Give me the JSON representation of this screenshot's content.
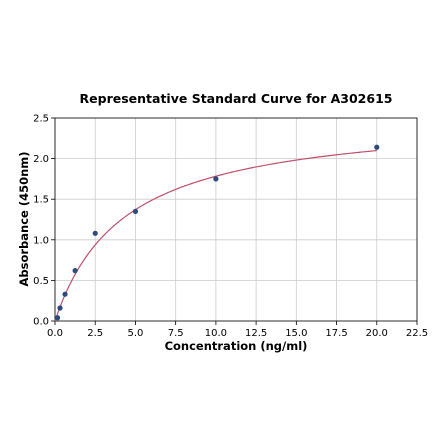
{
  "chart_data": {
    "type": "scatter",
    "title": "Representative Standard Curve for A302615",
    "xlabel": "Concentration (ng/ml)",
    "ylabel": "Absorbance (450nm)",
    "xlim": [
      0,
      22.5
    ],
    "ylim": [
      0,
      2.5
    ],
    "xticks": [
      0.0,
      2.5,
      5.0,
      7.5,
      10.0,
      12.5,
      15.0,
      17.5,
      20.0,
      22.5
    ],
    "yticks": [
      0.0,
      0.5,
      1.0,
      1.5,
      2.0,
      2.5
    ],
    "xtick_labels": [
      "0.0",
      "2.5",
      "5.0",
      "7.5",
      "10.0",
      "12.5",
      "15.0",
      "17.5",
      "20.0",
      "22.5"
    ],
    "ytick_labels": [
      "0.0",
      "0.5",
      "1.0",
      "1.5",
      "2.0",
      "2.5"
    ],
    "grid": true,
    "series": [
      {
        "points": [
          {
            "x": 0.156,
            "y": 0.04
          },
          {
            "x": 0.312,
            "y": 0.16
          },
          {
            "x": 0.625,
            "y": 0.33
          },
          {
            "x": 1.25,
            "y": 0.62
          },
          {
            "x": 2.5,
            "y": 1.08
          },
          {
            "x": 5.0,
            "y": 1.35
          },
          {
            "x": 10.0,
            "y": 1.75
          },
          {
            "x": 20.0,
            "y": 2.14
          }
        ],
        "color": "#2c4a7a"
      }
    ],
    "fit_curve": {
      "model": "hyperbolic",
      "vmax": 2.55,
      "k": 4.3,
      "x_range": [
        0,
        20
      ],
      "color": "#c0506e"
    }
  }
}
